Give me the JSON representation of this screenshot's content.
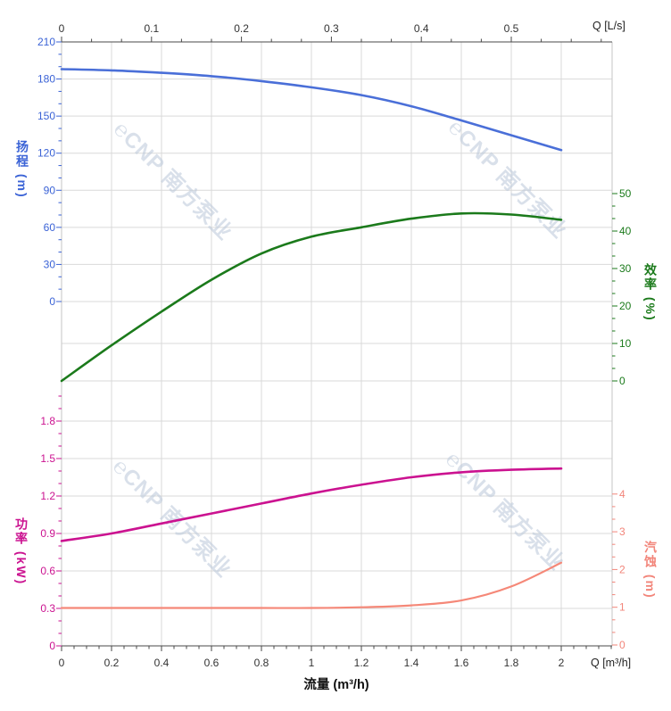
{
  "watermark": {
    "text": "℮CNP 南方泵业"
  },
  "chart_data": {
    "type": "line",
    "description": "Pump performance curves: head, efficiency, power and NPSH versus flow",
    "x_axis": {
      "title": "流量 (m³/h)",
      "unit_top": "Q [L/s]",
      "unit_bottom": "Q [m³/h]",
      "top_tick_labels": [
        "0",
        "0.1",
        "0.2",
        "0.3",
        "0.4",
        "0.5"
      ],
      "bottom_tick_labels": [
        "0",
        "0.2",
        "0.4",
        "0.6",
        "0.8",
        "1",
        "1.2",
        "1.4",
        "1.6",
        "1.8",
        "2"
      ]
    },
    "x": [
      0,
      0.2,
      0.4,
      0.6,
      0.8,
      1,
      1.2,
      1.4,
      1.6,
      1.8,
      2
    ],
    "axes": {
      "head": {
        "title": "扬程 (m)",
        "side": "left",
        "color": "#3b63d6",
        "tick_labels": [
          "210",
          "180",
          "150",
          "120",
          "90",
          "60",
          "30",
          "0"
        ]
      },
      "eff": {
        "title": "效率 (%)",
        "side": "right",
        "color": "#1b7a1b",
        "tick_labels": [
          "50",
          "40",
          "30",
          "20",
          "10",
          "0"
        ]
      },
      "power": {
        "title": "功率 (kW)",
        "side": "left",
        "color": "#cb1290",
        "tick_labels": [
          "1.8",
          "1.5",
          "1.2",
          "0.9",
          "0.6",
          "0.3",
          "0"
        ]
      },
      "npsh": {
        "title": "汽蚀 (m)",
        "side": "right",
        "color": "#f2857a",
        "tick_labels": [
          "4",
          "3",
          "2",
          "1",
          "0"
        ]
      }
    },
    "series": [
      {
        "name": "扬程",
        "axis": "head",
        "unit": "m",
        "color": "#4a6fd8",
        "values": [
          188,
          187,
          185,
          182.3,
          178.3,
          173.3,
          167,
          158,
          146.5,
          134.5,
          122.5
        ]
      },
      {
        "name": "效率",
        "axis": "eff",
        "unit": "%",
        "color": "#1b7a1b",
        "values": [
          0,
          9.5,
          18.5,
          27,
          34,
          38.5,
          41,
          43.3,
          44.7,
          44.4,
          43
        ]
      },
      {
        "name": "功率",
        "axis": "power",
        "unit": "kW",
        "color": "#cb1290",
        "values": [
          0.84,
          0.9,
          0.98,
          1.06,
          1.14,
          1.22,
          1.29,
          1.35,
          1.39,
          1.41,
          1.42
        ]
      },
      {
        "name": "汽蚀",
        "axis": "npsh",
        "unit": "m",
        "color": "#f58878",
        "values": [
          0.98,
          0.98,
          0.98,
          0.98,
          0.98,
          0.98,
          1.0,
          1.05,
          1.18,
          1.55,
          2.18
        ]
      }
    ]
  }
}
